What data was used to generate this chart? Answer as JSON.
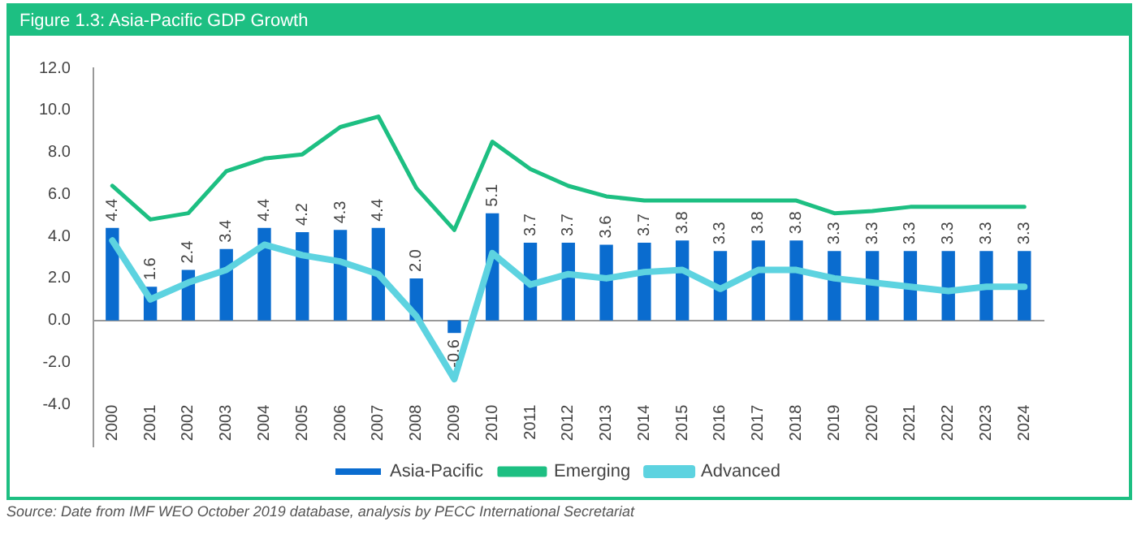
{
  "chart_data": {
    "type": "bar",
    "title": "Figure 1.3: Asia-Pacific GDP Growth",
    "annotations": [
      "Source: Date from IMF WEO October 2019 database, analysis by PECC International Secretariat"
    ],
    "categories": [
      "2000",
      "2001",
      "2002",
      "2003",
      "2004",
      "2005",
      "2006",
      "2007",
      "2008",
      "2009",
      "2010",
      "2011",
      "2012",
      "2013",
      "2014",
      "2015",
      "2016",
      "2017",
      "2018",
      "2019",
      "2020",
      "2021",
      "2022",
      "2023",
      "2024"
    ],
    "series": [
      {
        "name": "Asia-Pacific",
        "color": "#0a6ccf",
        "values": [
          4.4,
          1.6,
          2.4,
          3.4,
          4.4,
          4.2,
          4.3,
          4.4,
          2.0,
          -0.6,
          5.1,
          3.7,
          3.7,
          3.6,
          3.7,
          3.8,
          3.3,
          3.8,
          3.8,
          3.3,
          3.3,
          3.3,
          3.3,
          3.3,
          3.3
        ],
        "value_labels": [
          "4.4",
          "1.6",
          "2.4",
          "3.4",
          "4.4",
          "4.2",
          "4.3",
          "4.4",
          "2.0",
          "-0.6",
          "5.1",
          "3.7",
          "3.7",
          "3.6",
          "3.7",
          "3.8",
          "3.3",
          "3.8",
          "3.8",
          "3.3",
          "3.3",
          "3.3",
          "3.3",
          "3.3",
          "3.3"
        ]
      },
      {
        "name": "Emerging",
        "type": "line",
        "color": "#1dbf82",
        "values": [
          6.4,
          4.8,
          5.1,
          7.1,
          7.7,
          7.9,
          9.2,
          9.7,
          6.3,
          4.3,
          8.5,
          7.2,
          6.4,
          5.9,
          5.7,
          5.7,
          5.7,
          5.7,
          5.7,
          5.1,
          5.2,
          5.4,
          5.4,
          5.4,
          5.4
        ]
      },
      {
        "name": "Advanced",
        "type": "line",
        "color": "#5dd3e0",
        "values": [
          3.8,
          1.0,
          1.8,
          2.4,
          3.6,
          3.1,
          2.8,
          2.2,
          0.2,
          -2.8,
          3.2,
          1.7,
          2.2,
          2.0,
          2.3,
          2.4,
          1.5,
          2.4,
          2.4,
          2.0,
          1.8,
          1.6,
          1.4,
          1.6,
          1.6
        ]
      }
    ],
    "ylim": [
      -6,
      12
    ],
    "yticks": [
      {
        "value": -4,
        "label": "-4.0"
      },
      {
        "value": -2,
        "label": "-2.0"
      },
      {
        "value": 0,
        "label": "0.0"
      },
      {
        "value": 2,
        "label": "2.0"
      },
      {
        "value": 4,
        "label": "4.0"
      },
      {
        "value": 6,
        "label": "6.0"
      },
      {
        "value": 8,
        "label": "8.0"
      },
      {
        "value": 10,
        "label": "10.0"
      },
      {
        "value": 12,
        "label": "12.0"
      }
    ],
    "legend": "bottom",
    "marker": "none"
  }
}
